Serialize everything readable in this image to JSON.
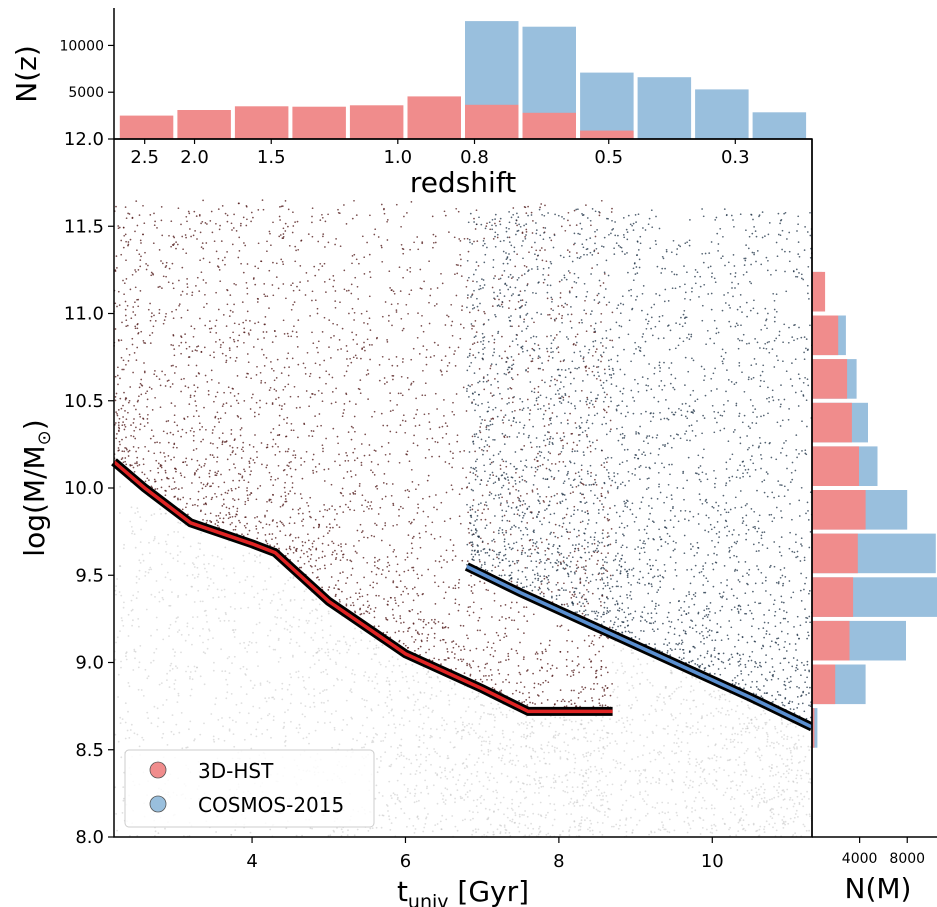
{
  "colors": {
    "hst": "#f08c8c",
    "cosmos": "#99bfdd",
    "hst_points": "#4a1010",
    "cosmos_points": "#1a2e42",
    "bg_points": "#b8b8b8",
    "hst_limit": "#e02424",
    "cosmos_limit": "#5a8fd0"
  },
  "chart_data": [
    {
      "type": "scatter",
      "title": "",
      "xlabel_main": "t",
      "xlabel_sub": "univ",
      "xlabel_unit": " [Gyr]",
      "ylabel_main": "log(M/M",
      "ylabel_sun": "⊙",
      "ylabel_end": ")",
      "xlim": [
        2.2,
        11.3
      ],
      "ylim": [
        8.0,
        12.0
      ],
      "x_ticks": [
        4,
        6,
        8,
        10
      ],
      "y_ticks": [
        8.0,
        8.5,
        9.0,
        9.5,
        10.0,
        10.5,
        11.0,
        11.5,
        12.0
      ],
      "secondary_axis": {
        "label": "redshift",
        "ticks": [
          {
            "label": "2.5",
            "t": 2.6
          },
          {
            "label": "2.0",
            "t": 3.25
          },
          {
            "label": "1.5",
            "t": 4.25
          },
          {
            "label": "1.0",
            "t": 5.9
          },
          {
            "label": "0.8",
            "t": 6.9
          },
          {
            "label": "0.5",
            "t": 8.65
          },
          {
            "label": "0.3",
            "t": 10.3
          }
        ]
      },
      "series": [
        {
          "name": "3D-HST",
          "x_range": [
            2.2,
            8.7
          ],
          "mass_limit": [
            [
              2.2,
              10.15
            ],
            [
              2.6,
              10.0
            ],
            [
              3.2,
              9.8
            ],
            [
              4.0,
              9.68
            ],
            [
              4.3,
              9.63
            ],
            [
              5.0,
              9.35
            ],
            [
              6.0,
              9.05
            ],
            [
              7.0,
              8.85
            ],
            [
              7.6,
              8.72
            ],
            [
              8.7,
              8.72
            ]
          ]
        },
        {
          "name": "COSMOS-2015",
          "x_range": [
            6.8,
            11.3
          ],
          "mass_limit": [
            [
              6.8,
              9.55
            ],
            [
              7.5,
              9.4
            ],
            [
              8.5,
              9.2
            ],
            [
              9.5,
              9.0
            ],
            [
              10.5,
              8.8
            ],
            [
              11.3,
              8.63
            ]
          ]
        }
      ]
    },
    {
      "type": "bar",
      "ylabel": "N(z)",
      "y_ticks": [
        5000,
        10000
      ],
      "ylim": [
        0,
        14000
      ],
      "bin_width_gyr": 0.75,
      "bin_starts_gyr": [
        2.25,
        3.0,
        3.75,
        4.5,
        5.25,
        6.0,
        6.75,
        7.5,
        8.25,
        9.0,
        9.75,
        10.5
      ],
      "series": [
        {
          "name": "3D-HST",
          "values": [
            2500,
            3100,
            3500,
            3450,
            3600,
            4550,
            3650,
            2800,
            900,
            0,
            0,
            0
          ]
        },
        {
          "name": "COSMOS-2015",
          "values": [
            0,
            0,
            0,
            0,
            0,
            0,
            12600,
            12000,
            7100,
            6600,
            5300,
            2850
          ]
        }
      ]
    },
    {
      "type": "bar",
      "orientation": "horizontal",
      "xlabel": "N(M)",
      "x_ticks": [
        4000,
        8000
      ],
      "xlim": [
        0,
        10500
      ],
      "mass_bins": [
        8.5,
        8.75,
        9.0,
        9.25,
        9.5,
        9.75,
        10.0,
        10.25,
        10.5,
        10.75,
        11.0,
        11.25
      ],
      "bin_height": 0.25,
      "series": [
        {
          "name": "3D-HST",
          "values": [
            200,
            1950,
            3150,
            3450,
            3850,
            4500,
            3950,
            3350,
            2950,
            2200,
            1100
          ]
        },
        {
          "name": "COSMOS-2015",
          "values": [
            450,
            4500,
            7900,
            10500,
            10400,
            8000,
            5500,
            4700,
            3750,
            2850,
            850
          ]
        }
      ]
    }
  ]
}
